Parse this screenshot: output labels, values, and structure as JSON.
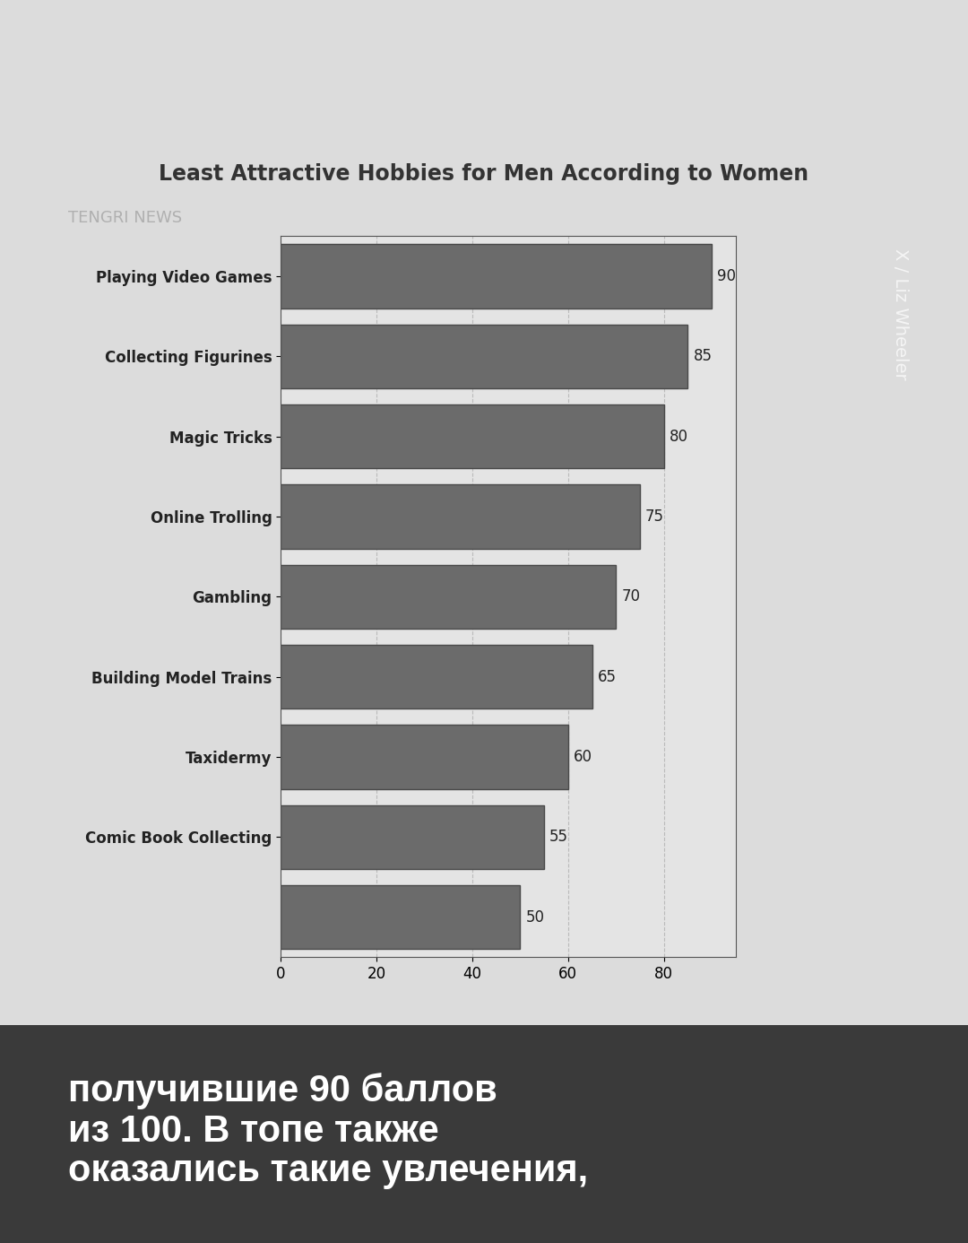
{
  "chart_data": {
    "type": "bar",
    "orientation": "horizontal",
    "title": "Least Attractive Hobbies for Men According to Women",
    "categories": [
      "Playing Video Games",
      "Collecting Figurines",
      "Magic Tricks",
      "Online Trolling",
      "Gambling",
      "Building Model Trains",
      "Taxidermy",
      "Comic Book Collecting",
      null
    ],
    "values": [
      90,
      85,
      80,
      75,
      70,
      65,
      60,
      55,
      50
    ],
    "color": "#6b6b6b",
    "xlim": [
      0,
      95
    ],
    "xticks": [
      0,
      20,
      40,
      60,
      80
    ],
    "grid": true,
    "data_labels": true,
    "annotations": [
      "TENGRI NEWS",
      "X / Liz Wheeler",
      "получившие 90 баллов\nиз 100. В топе также\nоказались такие увлечения,"
    ]
  }
}
